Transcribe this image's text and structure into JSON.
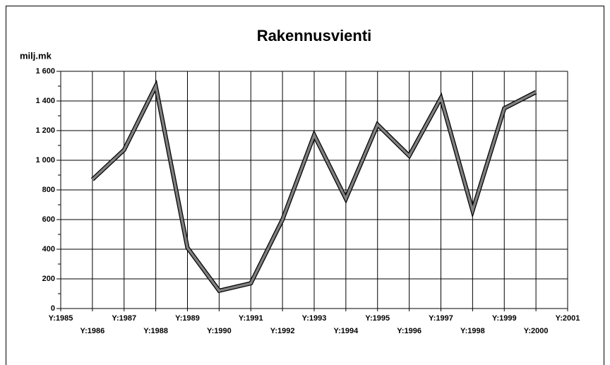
{
  "chart_data": {
    "type": "line",
    "title": "Rakennusvienti",
    "y_label": "milj.mk",
    "categories": [
      "Y:1985",
      "Y:1986",
      "Y:1987",
      "Y:1988",
      "Y:1989",
      "Y:1990",
      "Y:1991",
      "Y:1992",
      "Y:1993",
      "Y:1994",
      "Y:1995",
      "Y:1996",
      "Y:1997",
      "Y:1998",
      "Y:1999",
      "Y:2000",
      "Y:2001"
    ],
    "values": [
      null,
      870,
      1070,
      1500,
      410,
      120,
      170,
      600,
      1170,
      740,
      1240,
      1030,
      1420,
      660,
      1350,
      1460,
      null
    ],
    "color": "#808080",
    "ylim": [
      0,
      1600
    ],
    "yticks": [
      0,
      200,
      400,
      600,
      800,
      {
        "value": 1000,
        "label": "1 000"
      },
      {
        "value": 1200,
        "label": "1 200"
      },
      {
        "value": 1400,
        "label": "1 400"
      },
      {
        "value": 1600,
        "label": "1 600"
      }
    ],
    "grid": true
  }
}
